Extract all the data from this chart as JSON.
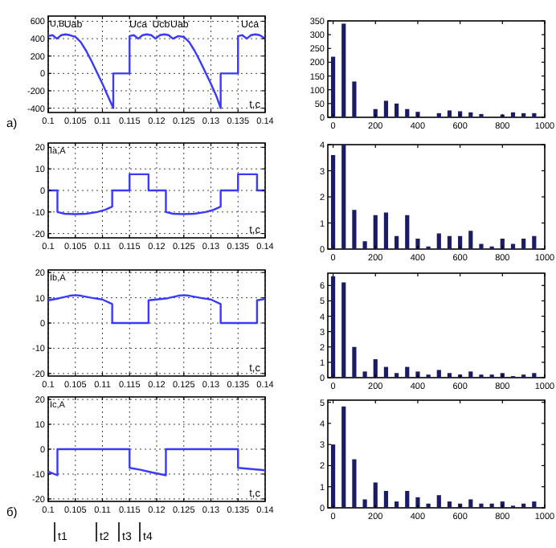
{
  "chart_data": [
    {
      "type": "line",
      "ylabel": "U,B",
      "xlabel": "t,c",
      "color": "#3a3aff",
      "grid": true,
      "xlim": [
        0.1,
        0.14
      ],
      "ylim": [
        -450,
        660
      ],
      "xticks": [
        0.1,
        0.105,
        0.11,
        0.115,
        0.12,
        0.125,
        0.13,
        0.135,
        0.14
      ],
      "yticks": [
        -400,
        -200,
        0,
        200,
        400,
        600
      ],
      "x": [
        0.1,
        0.1008,
        0.1016,
        0.1024,
        0.1032,
        0.104,
        0.105,
        0.106,
        0.107,
        0.108,
        0.109,
        0.11,
        0.111,
        0.112,
        0.112,
        0.115,
        0.115,
        0.1158,
        0.1166,
        0.1174,
        0.1182,
        0.119,
        0.1198,
        0.1206,
        0.1214,
        0.1222,
        0.123,
        0.124,
        0.125,
        0.126,
        0.127,
        0.128,
        0.129,
        0.13,
        0.131,
        0.1318,
        0.1318,
        0.135,
        0.135,
        0.1358,
        0.1366,
        0.1374,
        0.1382,
        0.139,
        0.14
      ],
      "values": [
        430,
        440,
        400,
        440,
        450,
        440,
        420,
        360,
        260,
        140,
        10,
        -120,
        -260,
        -400,
        0,
        0,
        430,
        440,
        400,
        440,
        450,
        440,
        400,
        440,
        450,
        440,
        400,
        430,
        420,
        360,
        260,
        140,
        10,
        -120,
        -260,
        -400,
        0,
        0,
        430,
        440,
        400,
        440,
        450,
        440,
        400
      ],
      "annotations": [
        "a)",
        {
          "text": "Uab",
          "x": 0.1046,
          "y": 530
        },
        {
          "text": "Uca",
          "x": 0.1166,
          "y": 530
        },
        {
          "text": "Ucb",
          "x": 0.1208,
          "y": 530
        },
        {
          "text": "Uab",
          "x": 0.1242,
          "y": 530
        },
        {
          "text": "Uca",
          "x": 0.1372,
          "y": 530
        }
      ]
    },
    {
      "type": "bar",
      "color": "#1c1c64",
      "xlim": [
        -25,
        1000
      ],
      "ylim": [
        0,
        350
      ],
      "xticks": [
        0,
        200,
        400,
        600,
        800,
        1000
      ],
      "yticks": [
        0,
        50,
        100,
        150,
        200,
        250,
        300,
        350
      ],
      "x": [
        0,
        50,
        100,
        150,
        200,
        250,
        300,
        350,
        400,
        450,
        500,
        550,
        600,
        650,
        700,
        750,
        800,
        850,
        900,
        950
      ],
      "values": [
        220,
        340,
        130,
        0,
        30,
        60,
        50,
        30,
        20,
        0,
        15,
        25,
        22,
        18,
        12,
        0,
        10,
        18,
        15,
        15
      ]
    },
    {
      "type": "line",
      "ylabel": "Ia,A",
      "xlabel": "t,c",
      "color": "#3a3aff",
      "grid": true,
      "xlim": [
        0.1,
        0.14
      ],
      "ylim": [
        -22,
        22
      ],
      "xticks": [
        0.1,
        0.105,
        0.11,
        0.115,
        0.12,
        0.125,
        0.13,
        0.135,
        0.14
      ],
      "yticks": [
        -20,
        -10,
        0,
        10,
        20
      ],
      "x": [
        0.1,
        0.1017,
        0.1017,
        0.103,
        0.105,
        0.107,
        0.109,
        0.1105,
        0.1118,
        0.1118,
        0.115,
        0.115,
        0.1185,
        0.1185,
        0.1217,
        0.1217,
        0.123,
        0.125,
        0.127,
        0.129,
        0.1305,
        0.1318,
        0.1318,
        0.135,
        0.135,
        0.1385,
        0.1385,
        0.14
      ],
      "values": [
        0,
        0,
        -10,
        -10.8,
        -11,
        -10.8,
        -10,
        -9,
        -7.5,
        0,
        0,
        7.5,
        7.5,
        0,
        0,
        -10,
        -10.8,
        -11,
        -10.8,
        -10,
        -9,
        -7.5,
        0,
        0,
        7.5,
        7.5,
        0,
        0
      ]
    },
    {
      "type": "bar",
      "color": "#1c1c64",
      "xlim": [
        -25,
        1000
      ],
      "ylim": [
        0,
        4
      ],
      "xticks": [
        0,
        200,
        400,
        600,
        800,
        1000
      ],
      "yticks": [
        0,
        1,
        2,
        3,
        4
      ],
      "x": [
        0,
        50,
        100,
        150,
        200,
        250,
        300,
        350,
        400,
        450,
        500,
        550,
        600,
        650,
        700,
        750,
        800,
        850,
        900,
        950
      ],
      "values": [
        3.6,
        4,
        1.5,
        0.3,
        1.3,
        1.4,
        0.5,
        1.3,
        0.4,
        0.1,
        0.6,
        0.5,
        0.5,
        0.7,
        0.2,
        0.1,
        0.4,
        0.2,
        0.4,
        0.5
      ]
    },
    {
      "type": "line",
      "ylabel": "Ib,A",
      "xlabel": "t,c",
      "color": "#3a3aff",
      "grid": true,
      "xlim": [
        0.1,
        0.14
      ],
      "ylim": [
        -21,
        21
      ],
      "xticks": [
        0.1,
        0.105,
        0.11,
        0.115,
        0.12,
        0.125,
        0.13,
        0.135,
        0.14
      ],
      "yticks": [
        -20,
        -10,
        0,
        10,
        20
      ],
      "x": [
        0.1,
        0.102,
        0.104,
        0.105,
        0.106,
        0.108,
        0.11,
        0.1118,
        0.1118,
        0.1185,
        0.1185,
        0.122,
        0.124,
        0.125,
        0.126,
        0.128,
        0.13,
        0.1318,
        0.1318,
        0.1385,
        0.1385,
        0.14
      ],
      "values": [
        9,
        9.8,
        10.8,
        11,
        10.8,
        10,
        9.3,
        7.5,
        0,
        0,
        9,
        9.8,
        10.8,
        11,
        10.8,
        10,
        9.3,
        7.5,
        0,
        0,
        9,
        9.5
      ]
    },
    {
      "type": "bar",
      "color": "#1c1c64",
      "xlim": [
        -25,
        1000
      ],
      "ylim": [
        0,
        6.8
      ],
      "xticks": [
        0,
        200,
        400,
        600,
        800,
        1000
      ],
      "yticks": [
        0,
        1,
        2,
        3,
        4,
        5,
        6
      ],
      "x": [
        0,
        50,
        100,
        150,
        200,
        250,
        300,
        350,
        400,
        450,
        500,
        550,
        600,
        650,
        700,
        750,
        800,
        850,
        900,
        950
      ],
      "values": [
        6.6,
        6.2,
        2,
        0.4,
        1.2,
        0.7,
        0.3,
        0.7,
        0.4,
        0.2,
        0.5,
        0.3,
        0.2,
        0.4,
        0.2,
        0.2,
        0.3,
        0.1,
        0.2,
        0.3
      ]
    },
    {
      "type": "line",
      "ylabel": "Ic,A",
      "xlabel": "t,c",
      "color": "#3a3aff",
      "grid": true,
      "xlim": [
        0.1,
        0.14
      ],
      "ylim": [
        -21,
        21
      ],
      "xticks": [
        0.1,
        0.105,
        0.11,
        0.115,
        0.12,
        0.125,
        0.13,
        0.135,
        0.14
      ],
      "yticks": [
        -20,
        -10,
        0,
        10,
        20
      ],
      "x": [
        0.1,
        0.1017,
        0.1017,
        0.115,
        0.115,
        0.117,
        0.119,
        0.1217,
        0.1217,
        0.135,
        0.135,
        0.1375,
        0.14
      ],
      "values": [
        -9,
        -10.5,
        0,
        0,
        -7.5,
        -8.3,
        -9.3,
        -10.5,
        0,
        0,
        -7.5,
        -8,
        -8.5
      ],
      "annotations": [
        "б)",
        "t1",
        "t2",
        "t3",
        "t4"
      ]
    },
    {
      "type": "bar",
      "color": "#1c1c64",
      "xlim": [
        -25,
        1000
      ],
      "ylim": [
        0,
        5.1
      ],
      "xticks": [
        0,
        200,
        400,
        600,
        800,
        1000
      ],
      "yticks": [
        0,
        1,
        2,
        3,
        4,
        5
      ],
      "x": [
        0,
        50,
        100,
        150,
        200,
        250,
        300,
        350,
        400,
        450,
        500,
        550,
        600,
        650,
        700,
        750,
        800,
        850,
        900,
        950
      ],
      "values": [
        3,
        4.8,
        2.3,
        0.4,
        1.2,
        0.8,
        0.3,
        0.8,
        0.5,
        0.2,
        0.6,
        0.3,
        0.2,
        0.4,
        0.2,
        0.2,
        0.3,
        0.1,
        0.2,
        0.3
      ]
    }
  ]
}
